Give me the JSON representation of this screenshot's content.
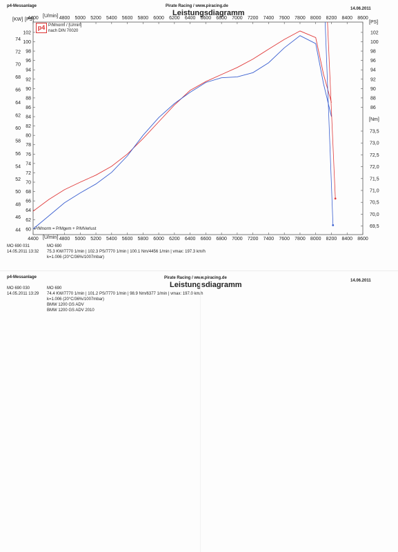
{
  "sheet1": {
    "app": "p4-Messanlage",
    "company": "Pirate Racing / www.piracing.de",
    "date": "14.06.2011",
    "title": "Leistungsdiagramm",
    "legend": {
      "logo": "p4",
      "line1": "P/Mnorm / [U/min]",
      "line2": "nach DIN 70020",
      "formula": "P/Mnorm = P/Mgem + P/MVerlust"
    },
    "footer": {
      "id1": "MO 690 031",
      "model1": "MO 690",
      "date_time": "14.05.2011  13:32",
      "result": "75.3 KW/7770 1/min  |  102.3 PS/7770 1/min  |  100.1 Nm/4456 1/min  |  vmax: 197.3 km/h",
      "correction": "k=1.006 (20°C/36%/1007mbar)"
    }
  },
  "sheet2": {
    "app": "p4-Messanlage",
    "company": "Pirate Racing / www.piracing.de",
    "date": "14.06.2011",
    "title": "Leistungsdiagramm",
    "id1": "MO 690 030",
    "model1": "MO 690",
    "date_time": "14.05.2011  13:29",
    "result": "74.4 KW/7770 1/min  |  101.2 PS/7770 1/min  |  98.9 Nm/6377 1/min  |  vmax: 197.0 km/h",
    "correction": "k=1.006 (20°C/36%/1007mbar)",
    "bike1": "BMW 1200 GS ADV",
    "bike2": "BMW 1200 GS ADV 2010"
  },
  "chart_data": {
    "type": "line",
    "x_unit_label": "[U/min]",
    "xlim": [
      4400,
      8600
    ],
    "x_ticks": [
      4400,
      4800,
      5000,
      5200,
      5400,
      5600,
      5800,
      6000,
      6200,
      6400,
      6600,
      6800,
      7000,
      7200,
      7400,
      7600,
      7800,
      8000,
      8200,
      8400,
      8600
    ],
    "kw_label": "[KW]",
    "kw_ticks": [
      44,
      46,
      48,
      50,
      52,
      54,
      56,
      58,
      60,
      62,
      64,
      66,
      68,
      70,
      72,
      74
    ],
    "ps_label": "[PS]",
    "ps_ticks": [
      60,
      62,
      64,
      66,
      68,
      70,
      72,
      74,
      76,
      78,
      80,
      82,
      84,
      86,
      88,
      90,
      92,
      94,
      96,
      98,
      100,
      102
    ],
    "ps_ticks_right": [
      86,
      88,
      90,
      92,
      94,
      96,
      98,
      100,
      102
    ],
    "ps_label_right": "[PS]",
    "nm_label": "[Nm]",
    "nm_ticks": [
      "73,5",
      "73,0",
      "72,5",
      "72,0",
      "71,5",
      "71,0",
      "70,5",
      "70,0",
      "69,5"
    ],
    "ps_lim": [
      58.8,
      104.2
    ],
    "series": [
      {
        "color": "#e03a3a",
        "x": [
          4400,
          4600,
          4800,
          5000,
          5200,
          5400,
          5600,
          5800,
          6000,
          6200,
          6400,
          6600,
          6800,
          7000,
          7200,
          7400,
          7600,
          7800,
          8000,
          8100,
          8200
        ],
        "y": [
          63.8,
          66.3,
          68.4,
          70.0,
          71.5,
          73.4,
          76.0,
          79.3,
          82.9,
          86.5,
          89.6,
          91.5,
          93.0,
          94.5,
          96.3,
          98.4,
          100.5,
          102.3,
          100.9,
          93.0,
          87.0
        ]
      },
      {
        "color": "#3a5fd0",
        "x": [
          4400,
          4600,
          4800,
          5000,
          5200,
          5400,
          5600,
          5800,
          6000,
          6200,
          6400,
          6600,
          6800,
          7000,
          7200,
          7400,
          7600,
          7800,
          8000,
          8100,
          8200
        ],
        "y": [
          60.0,
          62.8,
          65.6,
          67.7,
          69.6,
          72.1,
          75.6,
          80.0,
          83.8,
          86.8,
          89.2,
          91.3,
          92.3,
          92.5,
          93.4,
          95.5,
          98.7,
          101.3,
          99.6,
          91.0,
          84.0
        ]
      }
    ]
  }
}
